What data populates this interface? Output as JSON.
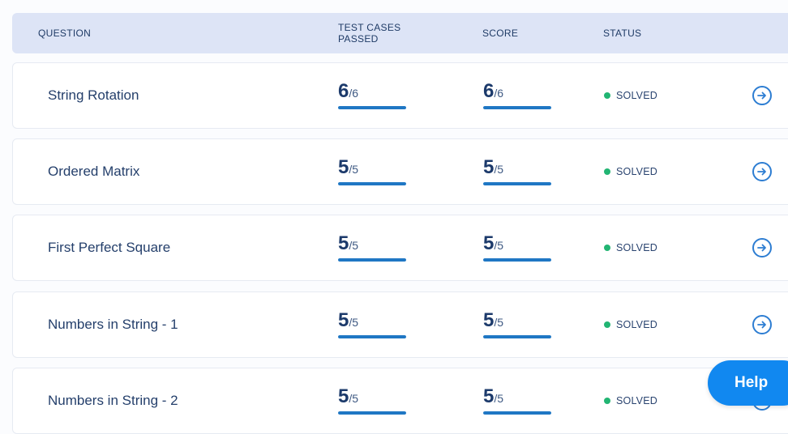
{
  "header": {
    "question": "QUESTION",
    "test_cases_line1": "TEST CASES",
    "test_cases_line2": "PASSED",
    "score": "SCORE",
    "status": "STATUS"
  },
  "rows": [
    {
      "name": "String Rotation",
      "tc_num": "6",
      "tc_den": "/6",
      "tc_fraction": 1.0,
      "sc_num": "6",
      "sc_den": "/6",
      "sc_fraction": 1.0,
      "status": "SOLVED"
    },
    {
      "name": "Ordered Matrix",
      "tc_num": "5",
      "tc_den": "/5",
      "tc_fraction": 1.0,
      "sc_num": "5",
      "sc_den": "/5",
      "sc_fraction": 1.0,
      "status": "SOLVED"
    },
    {
      "name": "First Perfect Square",
      "tc_num": "5",
      "tc_den": "/5",
      "tc_fraction": 1.0,
      "sc_num": "5",
      "sc_den": "/5",
      "sc_fraction": 1.0,
      "status": "SOLVED"
    },
    {
      "name": "Numbers in String - 1",
      "tc_num": "5",
      "tc_den": "/5",
      "tc_fraction": 1.0,
      "sc_num": "5",
      "sc_den": "/5",
      "sc_fraction": 1.0,
      "status": "SOLVED"
    },
    {
      "name": "Numbers in String - 2",
      "tc_num": "5",
      "tc_den": "/5",
      "tc_fraction": 1.0,
      "sc_num": "5",
      "sc_den": "/5",
      "sc_fraction": 1.0,
      "status": "SOLVED"
    }
  ],
  "help_label": "Help",
  "icons": {
    "row_action": "arrow-right-circle-icon",
    "status": "status-dot-icon"
  },
  "colors": {
    "accent": "#1f77c4",
    "success": "#22b573",
    "help_bg": "#1188f0",
    "header_bg": "#dde4f6"
  }
}
